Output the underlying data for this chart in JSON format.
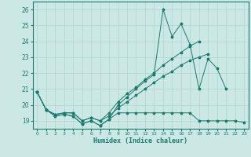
{
  "title": "",
  "xlabel": "Humidex (Indice chaleur)",
  "xlim": [
    -0.5,
    23.5
  ],
  "ylim": [
    18.5,
    26.5
  ],
  "yticks": [
    19,
    20,
    21,
    22,
    23,
    24,
    25,
    26
  ],
  "xticks": [
    0,
    1,
    2,
    3,
    4,
    5,
    6,
    7,
    8,
    9,
    10,
    11,
    12,
    13,
    14,
    15,
    16,
    17,
    18,
    19,
    20,
    21,
    22,
    23
  ],
  "bg_color": "#cce8e5",
  "line_color": "#1a7a6e",
  "grid_color": "#aed4d0",
  "series": [
    [
      20.8,
      19.7,
      19.3,
      19.4,
      19.3,
      18.8,
      19.0,
      18.7,
      19.1,
      20.0,
      20.5,
      21.0,
      21.5,
      21.9,
      26.0,
      24.3,
      25.1,
      23.8,
      21.0,
      22.9,
      22.3,
      21.0,
      null,
      null
    ],
    [
      20.8,
      19.7,
      19.3,
      19.4,
      19.3,
      18.8,
      19.0,
      18.7,
      19.1,
      19.5,
      19.5,
      19.5,
      19.5,
      19.5,
      19.5,
      19.5,
      19.5,
      19.5,
      19.0,
      19.0,
      19.0,
      19.0,
      19.0,
      18.9
    ],
    [
      20.8,
      19.7,
      19.4,
      19.5,
      19.5,
      19.0,
      19.2,
      19.0,
      19.3,
      19.8,
      20.2,
      20.6,
      21.0,
      21.4,
      21.8,
      22.1,
      22.5,
      22.8,
      23.0,
      23.2,
      null,
      null,
      null,
      null
    ],
    [
      20.8,
      19.7,
      19.4,
      19.5,
      19.5,
      19.0,
      19.2,
      19.0,
      19.5,
      20.2,
      20.7,
      21.1,
      21.6,
      22.0,
      22.5,
      22.9,
      23.3,
      23.7,
      24.0,
      null,
      null,
      null,
      null,
      null
    ]
  ]
}
